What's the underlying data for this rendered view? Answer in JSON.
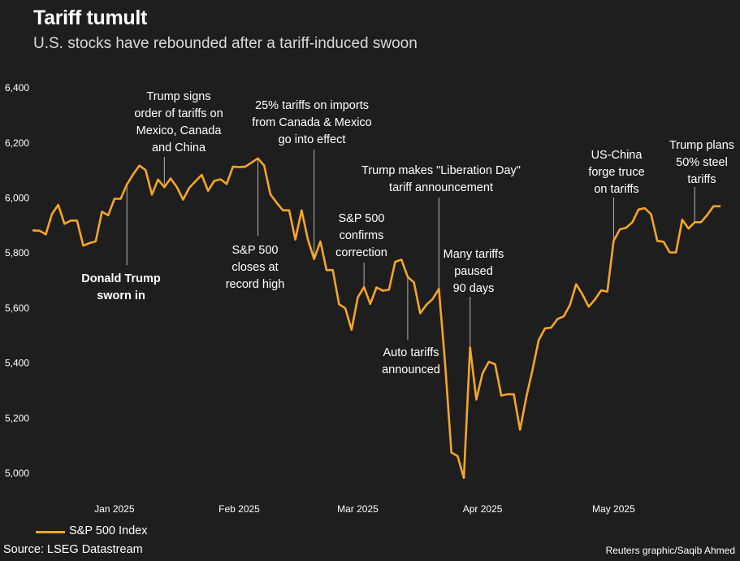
{
  "header": {
    "title": "Tariff tumult",
    "subtitle": "U.S. stocks have rebounded after a tariff-induced swoon"
  },
  "footer": {
    "source": "Source: LSEG Datastream",
    "credit": "Reuters graphic/Saqib Ahmed"
  },
  "colors": {
    "line": "#f6a623",
    "background": "#1e1e1e",
    "text": "#ffffff",
    "leader": "#b3b3b3"
  },
  "chart_data": {
    "type": "line",
    "legend": "bottom-left",
    "grid": false,
    "ylim": [
      4900,
      6450
    ],
    "y_ticks": [
      5000,
      5200,
      5400,
      5600,
      5800,
      6000,
      6200,
      6400
    ],
    "y_tick_labels": [
      "5,000",
      "5,200",
      "5,400",
      "5,600",
      "5,800",
      "6,000",
      "6,200",
      "6,400"
    ],
    "x_tick_labels": [
      {
        "index": 13,
        "label": "Jan 2025"
      },
      {
        "index": 33,
        "label": "Feb 2025"
      },
      {
        "index": 52,
        "label": "Mar 2025"
      },
      {
        "index": 72,
        "label": "Apr 2025"
      },
      {
        "index": 93,
        "label": "May 2025"
      }
    ],
    "series": [
      {
        "name": "S&P 500 Index",
        "values": [
          5882,
          5881,
          5868,
          5942,
          5975,
          5906,
          5918,
          5918,
          5827,
          5836,
          5842,
          5950,
          5937,
          5997,
          5997,
          6049,
          6086,
          6118,
          6101,
          6012,
          6067,
          6039,
          6071,
          6040,
          5994,
          6037,
          6061,
          6084,
          6026,
          6062,
          6068,
          6051,
          6114,
          6112,
          6114,
          6129,
          6144,
          6118,
          6013,
          5983,
          5955,
          5955,
          5849,
          5955,
          5849,
          5778,
          5842,
          5738,
          5738,
          5614,
          5599,
          5521,
          5639,
          5676,
          5615,
          5675,
          5663,
          5667,
          5768,
          5776,
          5713,
          5693,
          5581,
          5612,
          5633,
          5670,
          5396,
          5075,
          5062,
          4983,
          5457,
          5268,
          5363,
          5405,
          5396,
          5282,
          5287,
          5287,
          5158,
          5276,
          5375,
          5484,
          5526,
          5529,
          5560,
          5570,
          5611,
          5687,
          5650,
          5605,
          5631,
          5664,
          5660,
          5844,
          5886,
          5892,
          5912,
          5958,
          5963,
          5941,
          5844,
          5841,
          5802,
          5802,
          5921,
          5889,
          5912,
          5912,
          5938,
          5970,
          5970
        ]
      }
    ],
    "annotations": [
      {
        "id": "sworn-in",
        "index": 15,
        "lines": [
          "Donald Trump",
          "sworn in"
        ],
        "bold": true
      },
      {
        "id": "tariff-order",
        "index": 21,
        "lines": [
          "Trump signs",
          "order of tariffs on",
          "Mexico, Canada",
          "and China"
        ]
      },
      {
        "id": "record-high",
        "index": 36,
        "lines": [
          "S&P 500",
          "closes at",
          "record high"
        ]
      },
      {
        "id": "tariffs-effect",
        "index": 45,
        "lines": [
          "25% tariffs on imports",
          "from Canada & Mexico",
          "go into effect"
        ]
      },
      {
        "id": "correction",
        "index": 53,
        "lines": [
          "S&P 500",
          "confirms",
          "correction"
        ]
      },
      {
        "id": "auto-tariffs",
        "index": 60,
        "lines": [
          "Auto tariffs",
          "announced"
        ]
      },
      {
        "id": "liberation-day",
        "index": 65,
        "lines": [
          "Trump makes \"Liberation Day\"",
          "tariff announcement"
        ]
      },
      {
        "id": "paused",
        "index": 70,
        "lines": [
          "Many tariffs",
          "paused",
          "90 days"
        ]
      },
      {
        "id": "china-truce",
        "index": 93,
        "lines": [
          "US-China",
          "forge truce",
          "on tariffs"
        ]
      },
      {
        "id": "steel-tariffs",
        "index": 106,
        "lines": [
          "Trump plans",
          "50% steel",
          "tariffs"
        ]
      }
    ]
  }
}
